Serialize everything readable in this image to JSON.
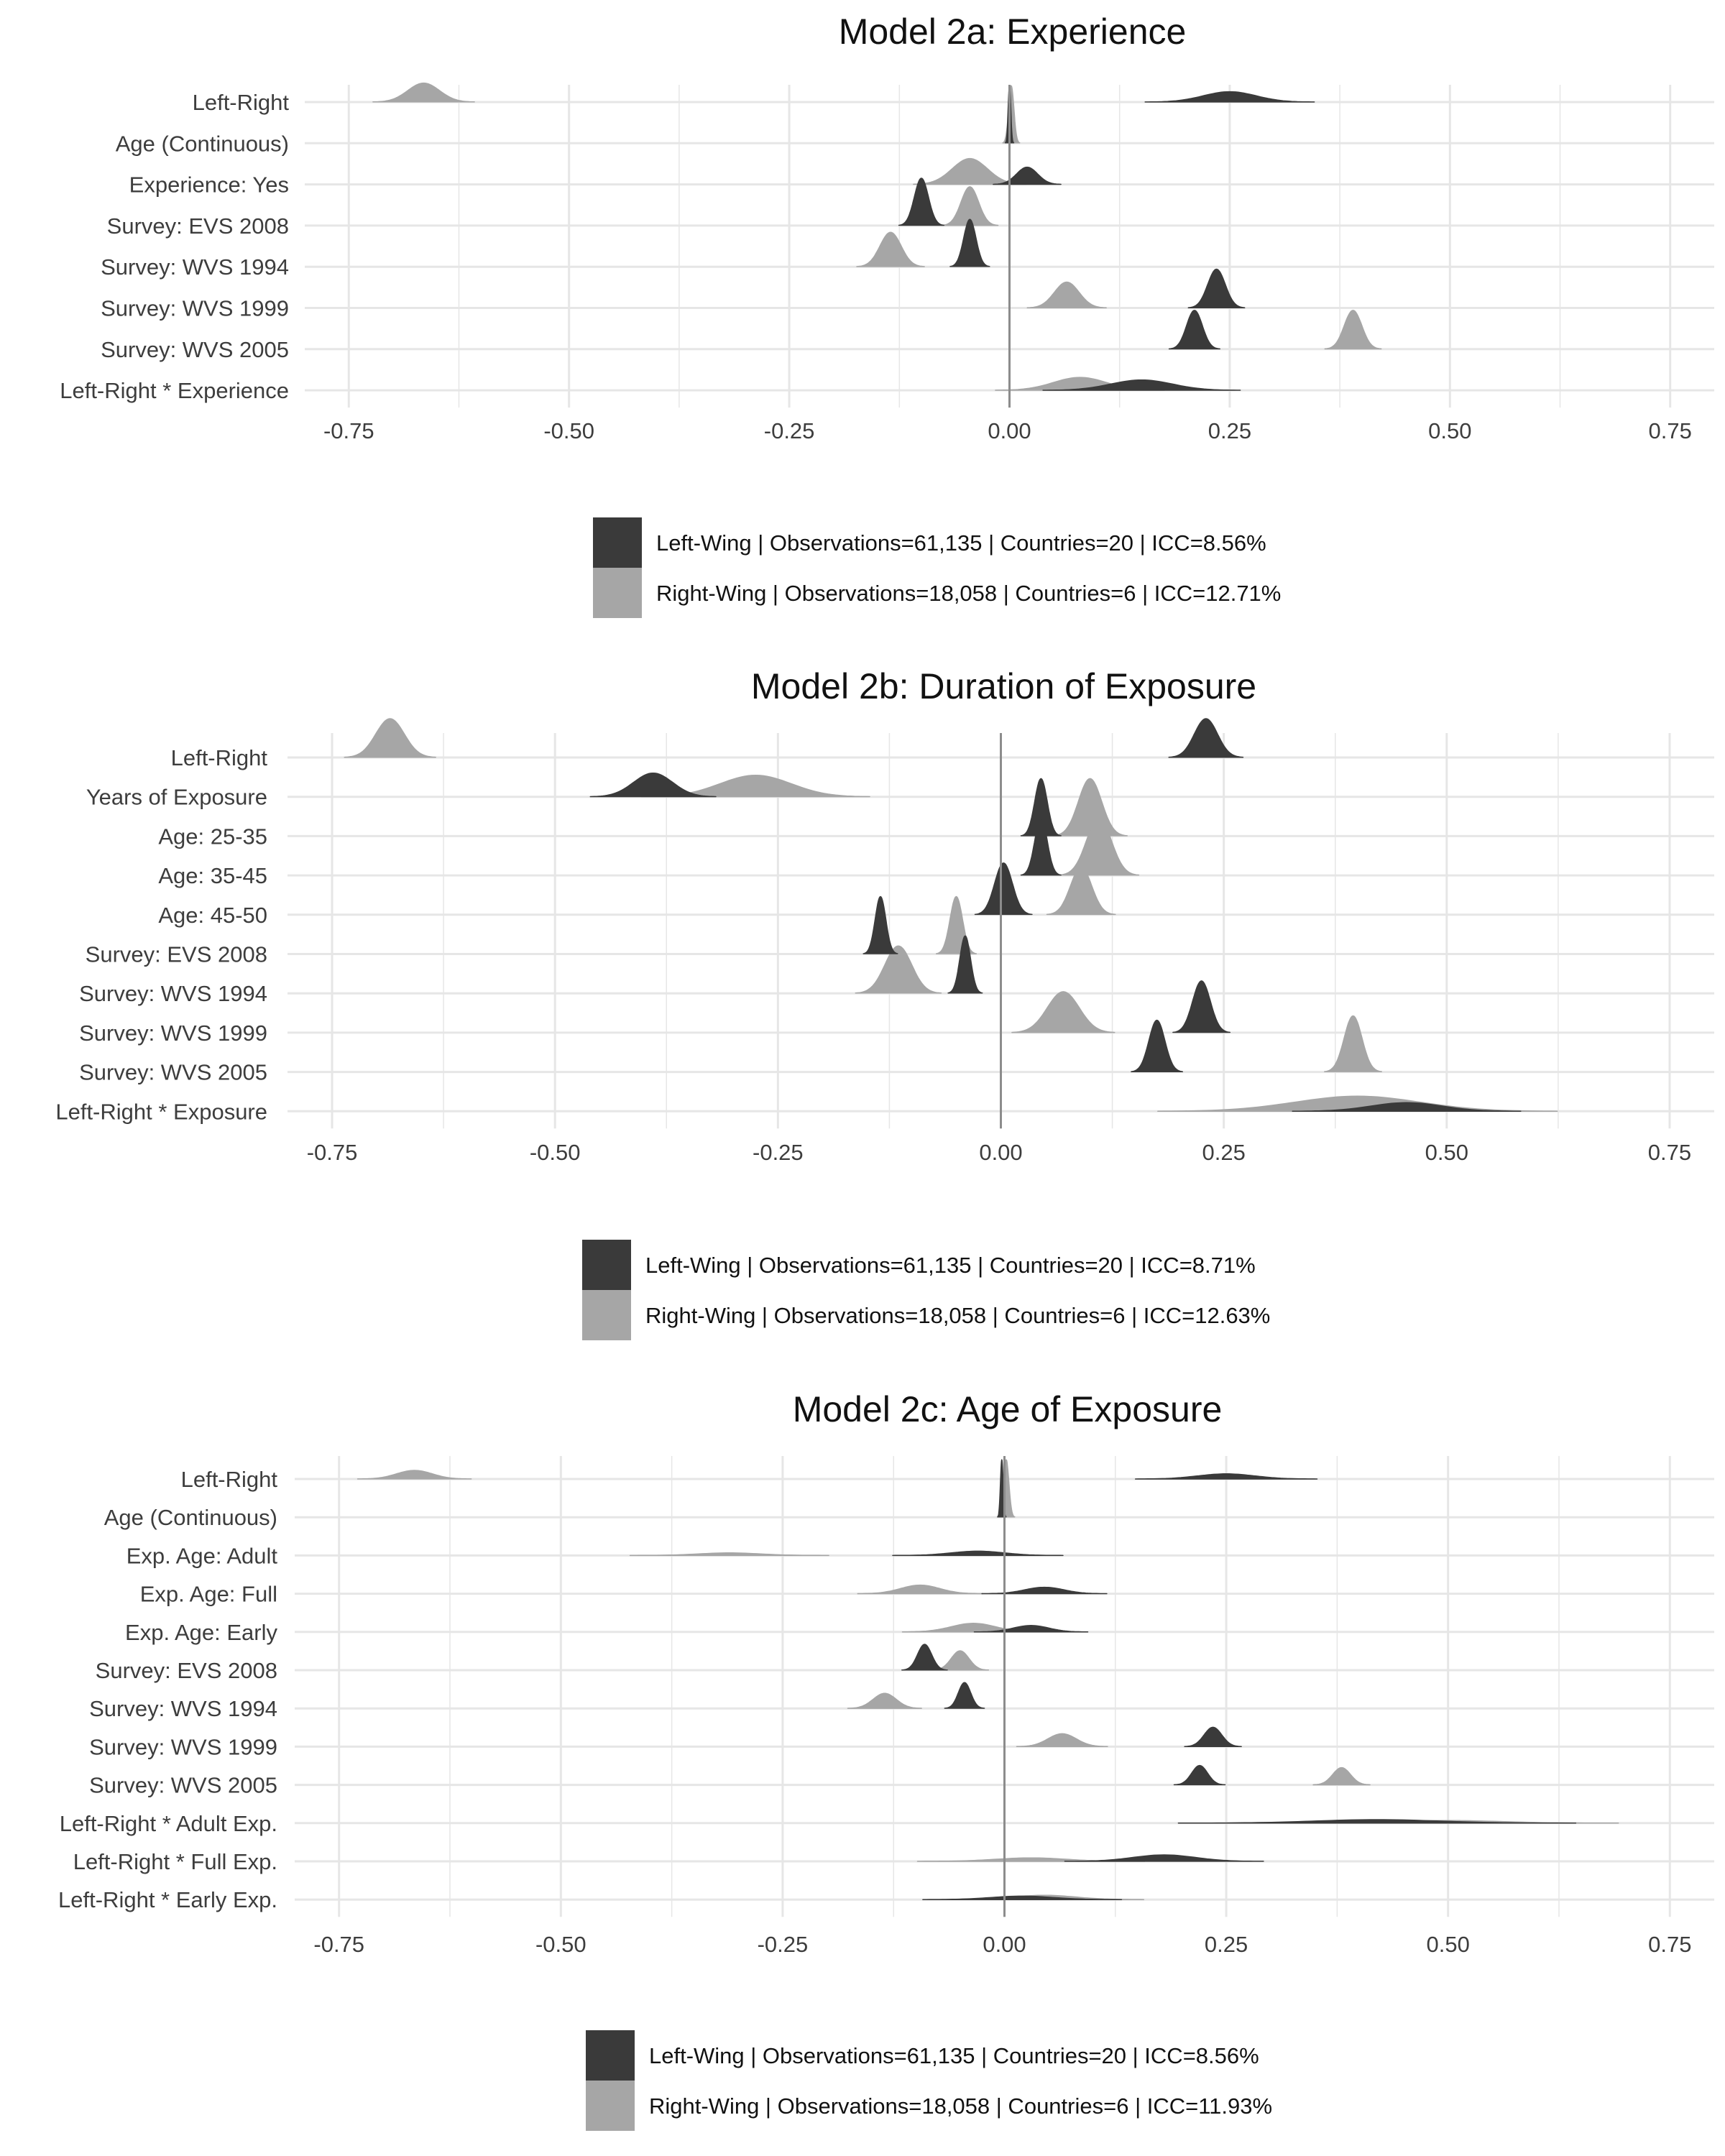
{
  "colors": {
    "left_wing": "#3a3a3a",
    "right_wing": "#a6a6a6",
    "grid": "#e6e6e6",
    "zero_line": "#8c8c8c",
    "label": "#3d3d3d",
    "title": "#111111"
  },
  "chart_data": [
    {
      "type": "ridgeline",
      "title": "Model 2a: Experience",
      "xlabel": "",
      "ylabel": "",
      "xlim": [
        -0.8,
        0.8
      ],
      "x_ticks": [
        "-0.75",
        "-0.50",
        "-0.25",
        "0.00",
        "0.25",
        "0.50",
        "0.75"
      ],
      "x_tick_values": [
        -0.75,
        -0.5,
        -0.25,
        0,
        0.25,
        0.5,
        0.75
      ],
      "grid": true,
      "legend_position": "bottom",
      "categories": [
        "Left-Right",
        "Age (Continuous)",
        "Experience: Yes",
        "Survey: EVS 2008",
        "Survey: WVS 1994",
        "Survey: WVS 1999",
        "Survey: WVS 2005",
        "Left-Right * Experience"
      ],
      "series": [
        {
          "name": "Left-Wing | Observations=61,135 | Countries=20 | ICC=8.56%",
          "mean": [
            0.25,
            0.0,
            0.02,
            -0.1,
            -0.045,
            0.235,
            0.21,
            0.15
          ],
          "sd": [
            0.03,
            0.0015,
            0.012,
            0.008,
            0.007,
            0.01,
            0.009,
            0.035
          ],
          "peak": [
            0.12,
            0.8,
            0.2,
            0.55,
            0.55,
            0.45,
            0.45,
            0.12
          ]
        },
        {
          "name": "Right-Wing | Observations=18,058 | Countries=6 | ICC=12.71%",
          "mean": [
            -0.665,
            0.002,
            -0.045,
            -0.045,
            -0.135,
            0.065,
            0.39,
            0.08
          ],
          "sd": [
            0.018,
            0.003,
            0.02,
            0.01,
            0.012,
            0.014,
            0.01,
            0.03
          ],
          "peak": [
            0.22,
            0.8,
            0.3,
            0.45,
            0.4,
            0.3,
            0.45,
            0.15
          ]
        }
      ]
    },
    {
      "type": "ridgeline",
      "title": "Model 2b: Duration of Exposure",
      "xlabel": "",
      "ylabel": "",
      "xlim": [
        -0.8,
        0.8
      ],
      "x_ticks": [
        "-0.75",
        "-0.50",
        "-0.25",
        "0.00",
        "0.25",
        "0.50",
        "0.75"
      ],
      "x_tick_values": [
        -0.75,
        -0.5,
        -0.25,
        0,
        0.25,
        0.5,
        0.75
      ],
      "grid": true,
      "legend_position": "bottom",
      "categories": [
        "Left-Right",
        "Years of Exposure",
        "Age: 25-35",
        "Age: 35-45",
        "Age: 45-50",
        "Survey: EVS 2008",
        "Survey: WVS 1994",
        "Survey: WVS 1999",
        "Survey: WVS 2005",
        "Left-Right * Exposure"
      ],
      "series": [
        {
          "name": "Left-Wing | Observations=61,135 | Countries=20 | ICC=8.71%",
          "mean": [
            0.23,
            -0.39,
            0.045,
            0.045,
            0.003,
            -0.135,
            -0.04,
            0.225,
            0.175,
            0.455
          ],
          "sd": [
            0.013,
            0.022,
            0.007,
            0.007,
            0.01,
            0.006,
            0.006,
            0.01,
            0.009,
            0.04
          ],
          "peak": [
            0.9,
            0.55,
            1.5,
            1.5,
            1.2,
            1.6,
            1.5,
            1.2,
            1.2,
            0.2
          ]
        },
        {
          "name": "Right-Wing | Observations=18,058 | Countries=6 | ICC=12.63%",
          "mean": [
            -0.685,
            -0.275,
            0.1,
            0.11,
            0.09,
            -0.05,
            -0.115,
            0.07,
            0.395,
            0.4
          ],
          "sd": [
            0.016,
            0.04,
            0.013,
            0.014,
            0.012,
            0.007,
            0.015,
            0.018,
            0.01,
            0.07
          ],
          "peak": [
            0.9,
            0.5,
            1.4,
            1.4,
            1.1,
            1.6,
            1.1,
            0.95,
            1.3,
            0.35
          ]
        }
      ]
    },
    {
      "type": "ridgeline",
      "title": "Model 2c: Age of Exposure",
      "xlabel": "",
      "ylabel": "",
      "xlim": [
        -0.8,
        0.8
      ],
      "x_ticks": [
        "-0.75",
        "-0.50",
        "-0.25",
        "0.00",
        "0.25",
        "0.50",
        "0.75"
      ],
      "x_tick_values": [
        -0.75,
        -0.5,
        -0.25,
        0,
        0.25,
        0.5,
        0.75
      ],
      "grid": true,
      "legend_position": "bottom",
      "categories": [
        "Left-Right",
        "Age (Continuous)",
        "Exp. Age: Adult",
        "Exp. Age: Full",
        "Exp. Age: Early",
        "Survey: EVS 2008",
        "Survey: WVS 1994",
        "Survey: WVS 1999",
        "Survey: WVS 2005",
        "Left-Right * Adult Exp.",
        "Left-Right * Full Exp.",
        "Left-Right * Early Exp."
      ],
      "series": [
        {
          "name": "Left-Wing | Observations=61,135 | Countries=20 | ICC=8.56%",
          "mean": [
            0.25,
            -0.003,
            -0.03,
            0.045,
            0.03,
            -0.09,
            -0.045,
            0.235,
            0.22,
            0.42,
            0.18,
            0.02
          ],
          "sd": [
            0.032,
            0.0015,
            0.03,
            0.022,
            0.02,
            0.008,
            0.007,
            0.01,
            0.009,
            0.07,
            0.035,
            0.035
          ],
          "peak": [
            0.12,
            1.4,
            0.1,
            0.15,
            0.15,
            0.6,
            0.6,
            0.45,
            0.45,
            0.08,
            0.15,
            0.08
          ]
        },
        {
          "name": "Right-Wing | Observations=18,058 | Countries=6 | ICC=11.93%",
          "mean": [
            -0.665,
            0.002,
            -0.31,
            -0.095,
            -0.035,
            -0.05,
            -0.135,
            0.065,
            0.38,
            0.5,
            0.03,
            0.045
          ],
          "sd": [
            0.02,
            0.003,
            0.035,
            0.022,
            0.025,
            0.01,
            0.013,
            0.016,
            0.01,
            0.06,
            0.04,
            0.035
          ],
          "peak": [
            0.2,
            1.4,
            0.06,
            0.2,
            0.2,
            0.45,
            0.35,
            0.3,
            0.4,
            0.06,
            0.08,
            0.1
          ]
        }
      ]
    }
  ]
}
